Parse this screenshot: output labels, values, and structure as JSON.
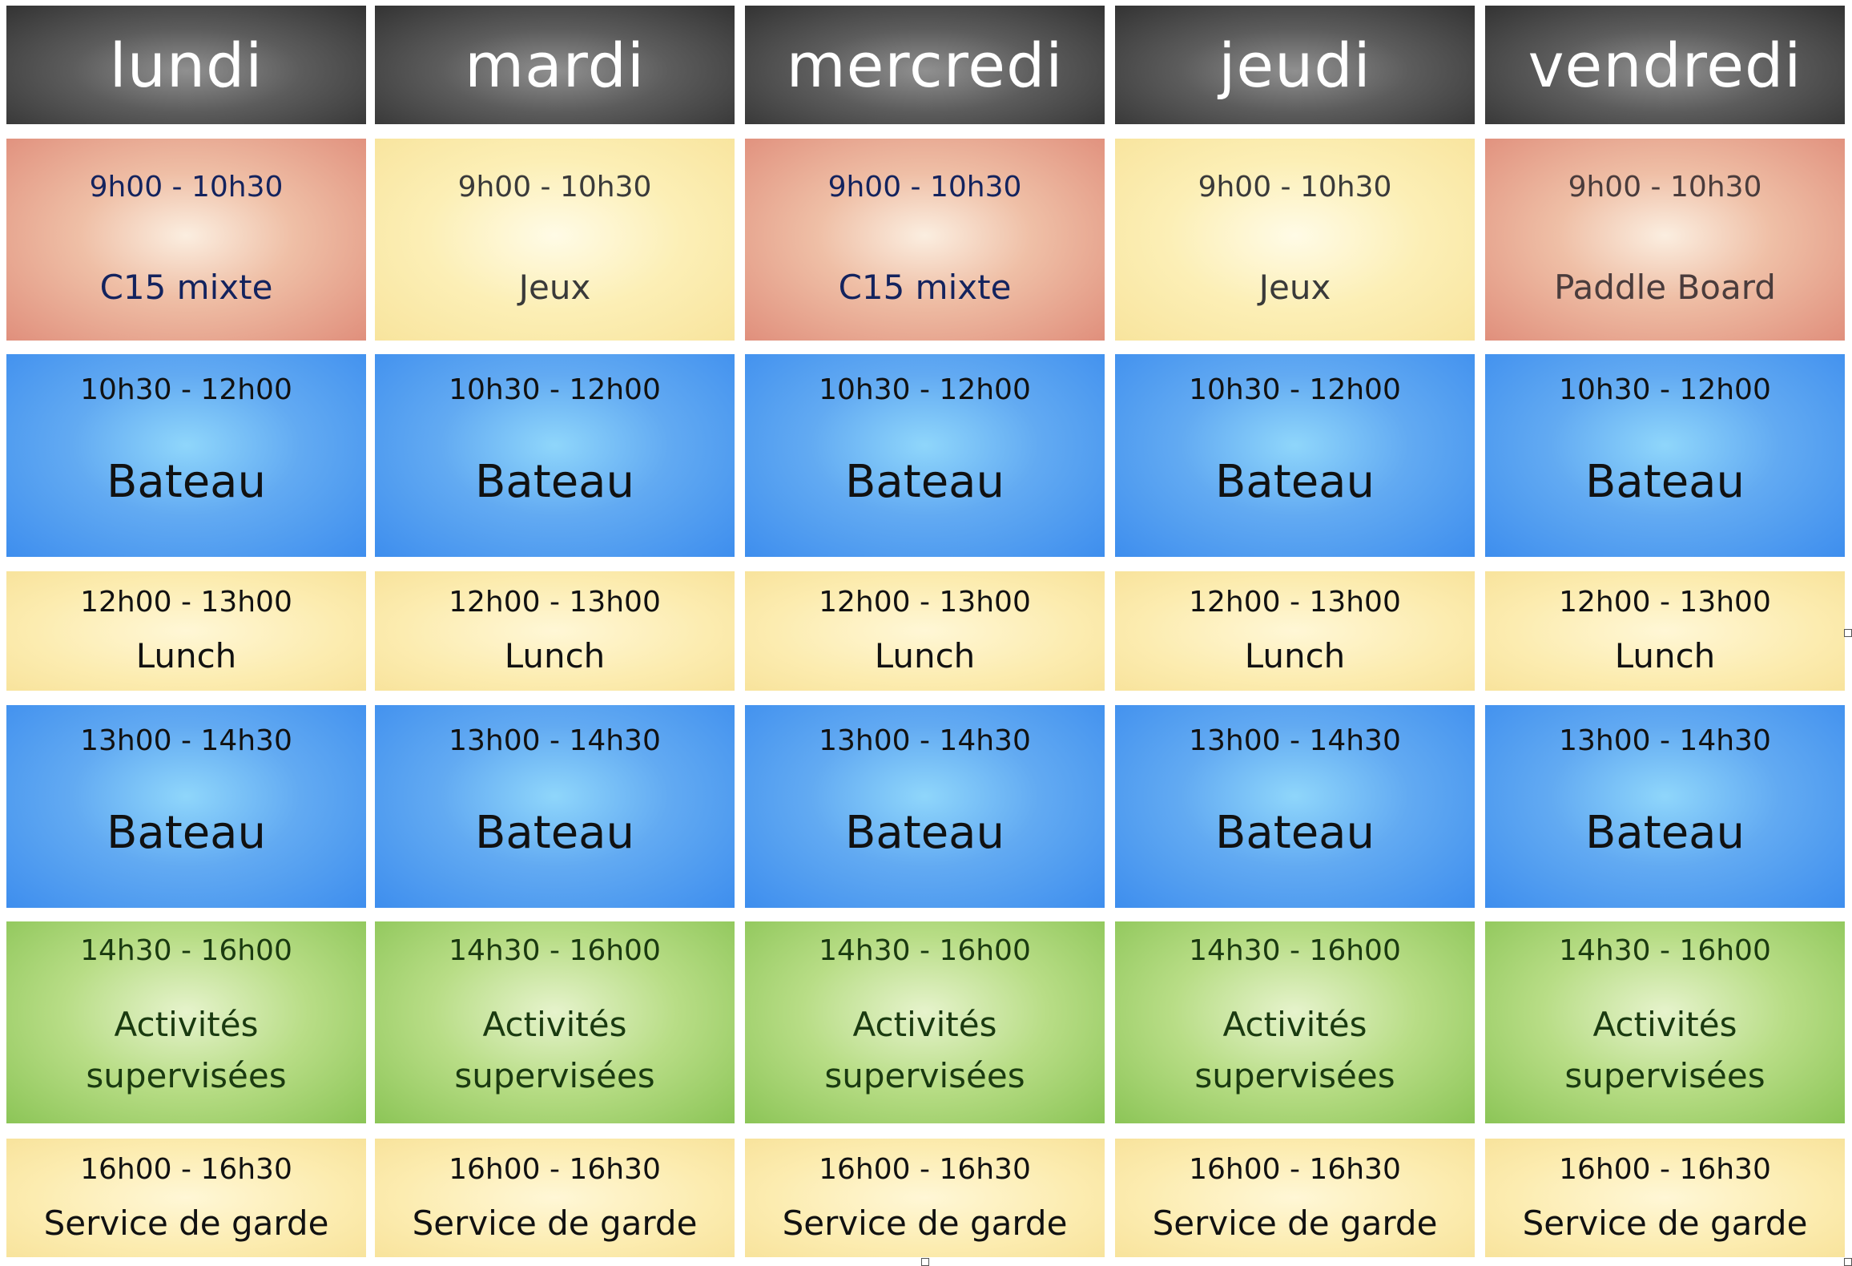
{
  "days": [
    "lundi",
    "mardi",
    "mercredi",
    "jeudi",
    "vendredi"
  ],
  "rows": [
    {
      "kind": "mixed",
      "slots": [
        {
          "time": "9h00 - 10h30",
          "label": "C15 mixte",
          "style": "salmon",
          "textColor": "#13235e"
        },
        {
          "time": "9h00 - 10h30",
          "label": "Jeux",
          "style": "yellow-tall",
          "textColor": "#3a3a3a"
        },
        {
          "time": "9h00 - 10h30",
          "label": "C15 mixte",
          "style": "salmon",
          "textColor": "#13235e"
        },
        {
          "time": "9h00 - 10h30",
          "label": "Jeux",
          "style": "yellow-tall",
          "textColor": "#3a3a3a"
        },
        {
          "time": "9h00 - 10h30",
          "label": "Paddle Board",
          "style": "salmon",
          "textColor": "#4a3c3c"
        }
      ]
    },
    {
      "kind": "blue",
      "slots": [
        {
          "time": "10h30 - 12h00",
          "label": "Bateau"
        },
        {
          "time": "10h30 - 12h00",
          "label": "Bateau"
        },
        {
          "time": "10h30 - 12h00",
          "label": "Bateau"
        },
        {
          "time": "10h30 - 12h00",
          "label": "Bateau"
        },
        {
          "time": "10h30 - 12h00",
          "label": "Bateau"
        }
      ]
    },
    {
      "kind": "yellow",
      "slots": [
        {
          "time": "12h00 - 13h00",
          "label": "Lunch"
        },
        {
          "time": "12h00 - 13h00",
          "label": "Lunch"
        },
        {
          "time": "12h00 - 13h00",
          "label": "Lunch"
        },
        {
          "time": "12h00 - 13h00",
          "label": "Lunch"
        },
        {
          "time": "12h00 - 13h00",
          "label": "Lunch"
        }
      ]
    },
    {
      "kind": "blue",
      "slots": [
        {
          "time": "13h00 - 14h30",
          "label": "Bateau"
        },
        {
          "time": "13h00 - 14h30",
          "label": "Bateau"
        },
        {
          "time": "13h00 - 14h30",
          "label": "Bateau"
        },
        {
          "time": "13h00 - 14h30",
          "label": "Bateau"
        },
        {
          "time": "13h00 - 14h30",
          "label": "Bateau"
        }
      ]
    },
    {
      "kind": "green",
      "slots": [
        {
          "time": "14h30 - 16h00",
          "label_lines": [
            "Activités",
            "supervisées"
          ]
        },
        {
          "time": "14h30 - 16h00",
          "label_lines": [
            "Activités",
            "supervisées"
          ]
        },
        {
          "time": "14h30 - 16h00",
          "label_lines": [
            "Activités",
            "supervisées"
          ]
        },
        {
          "time": "14h30 - 16h00",
          "label_lines": [
            "Activités",
            "supervisées"
          ]
        },
        {
          "time": "14h30 - 16h00",
          "label_lines": [
            "Activités",
            "supervisées"
          ]
        }
      ]
    },
    {
      "kind": "yellow",
      "slots": [
        {
          "time": "16h00 - 16h30",
          "label": "Service de garde"
        },
        {
          "time": "16h00 - 16h30",
          "label": "Service de garde"
        },
        {
          "time": "16h00 - 16h30",
          "label": "Service de garde"
        },
        {
          "time": "16h00 - 16h30",
          "label": "Service de garde"
        },
        {
          "time": "16h00 - 16h30",
          "label": "Service de garde"
        }
      ]
    }
  ],
  "colors": {
    "header": "#4a4a4a",
    "salmon": "#e08f7c",
    "yellow": "#fbe9a8",
    "blue": "#4a94ee",
    "green": "#98cc63"
  }
}
